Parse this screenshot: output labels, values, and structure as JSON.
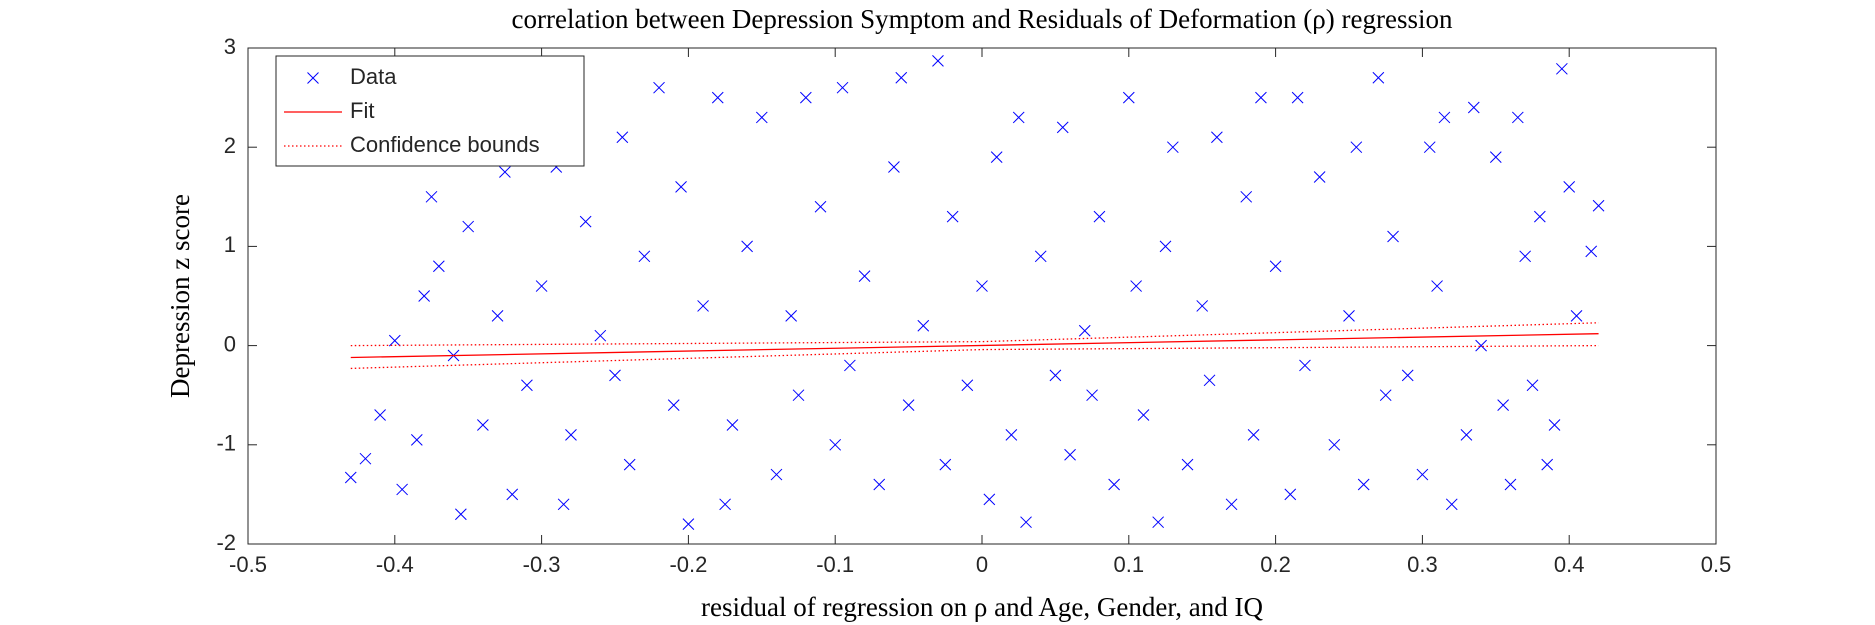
{
  "chart_data": {
    "type": "scatter",
    "title": "correlation between Depression Symptom and Residuals of Deformation (ρ) regression",
    "x_label": "residual of regression on ρ and Age, Gender, and IQ",
    "y_label": "Depression z score",
    "xlim": [
      -0.5,
      0.5
    ],
    "xticks": [
      -0.5,
      -0.4,
      -0.3,
      -0.2,
      -0.1,
      0,
      0.1,
      0.2,
      0.3,
      0.4,
      0.5
    ],
    "ylim": [
      -2,
      3
    ],
    "yticks": [
      -2,
      -1,
      0,
      1,
      2,
      3
    ],
    "grid": false,
    "legend_position": "upper-left",
    "series": [
      {
        "name": "Data",
        "color": "#0000ff",
        "marker": "x",
        "x": [
          -0.43,
          -0.42,
          -0.41,
          -0.4,
          -0.395,
          -0.385,
          -0.38,
          -0.375,
          -0.37,
          -0.36,
          -0.355,
          -0.35,
          -0.34,
          -0.33,
          -0.325,
          -0.32,
          -0.31,
          -0.3,
          -0.29,
          -0.285,
          -0.28,
          -0.27,
          -0.26,
          -0.25,
          -0.245,
          -0.24,
          -0.23,
          -0.22,
          -0.21,
          -0.205,
          -0.2,
          -0.19,
          -0.18,
          -0.175,
          -0.17,
          -0.16,
          -0.15,
          -0.14,
          -0.13,
          -0.125,
          -0.12,
          -0.11,
          -0.1,
          -0.095,
          -0.09,
          -0.08,
          -0.07,
          -0.06,
          -0.055,
          -0.05,
          -0.04,
          -0.03,
          -0.025,
          -0.02,
          -0.01,
          0.0,
          0.005,
          0.01,
          0.02,
          0.025,
          0.03,
          0.04,
          0.05,
          0.055,
          0.06,
          0.07,
          0.075,
          0.08,
          0.09,
          0.1,
          0.105,
          0.11,
          0.12,
          0.125,
          0.13,
          0.14,
          0.15,
          0.155,
          0.16,
          0.17,
          0.18,
          0.185,
          0.19,
          0.2,
          0.21,
          0.215,
          0.22,
          0.23,
          0.24,
          0.25,
          0.255,
          0.26,
          0.27,
          0.275,
          0.28,
          0.29,
          0.3,
          0.305,
          0.31,
          0.315,
          0.32,
          0.33,
          0.335,
          0.34,
          0.35,
          0.355,
          0.36,
          0.365,
          0.37,
          0.375,
          0.38,
          0.385,
          0.39,
          0.395,
          0.4,
          0.405,
          0.415,
          0.42
        ],
        "values": [
          -1.33,
          -1.14,
          -0.7,
          0.05,
          -1.45,
          -0.95,
          0.5,
          1.5,
          0.8,
          -0.1,
          -1.7,
          1.2,
          -0.8,
          0.3,
          1.75,
          -1.5,
          -0.4,
          0.6,
          1.8,
          -1.6,
          -0.9,
          1.25,
          0.1,
          -0.3,
          2.1,
          -1.2,
          0.9,
          2.6,
          -0.6,
          1.6,
          -1.8,
          0.4,
          2.5,
          -1.6,
          -0.8,
          1.0,
          2.3,
          -1.3,
          0.3,
          -0.5,
          2.5,
          1.4,
          -1.0,
          2.6,
          -0.2,
          0.7,
          -1.4,
          1.8,
          2.7,
          -0.6,
          0.2,
          2.87,
          -1.2,
          1.3,
          -0.4,
          0.6,
          -1.55,
          1.9,
          -0.9,
          2.3,
          -1.78,
          0.9,
          -0.3,
          2.2,
          -1.1,
          0.15,
          -0.5,
          1.3,
          -1.4,
          2.5,
          0.6,
          -0.7,
          -1.78,
          1.0,
          2.0,
          -1.2,
          0.4,
          -0.35,
          2.1,
          -1.6,
          1.5,
          -0.9,
          2.5,
          0.8,
          -1.5,
          2.5,
          -0.2,
          1.7,
          -1.0,
          0.3,
          2.0,
          -1.4,
          2.7,
          -0.5,
          1.1,
          -0.3,
          -1.3,
          2.0,
          0.6,
          2.3,
          -1.6,
          -0.9,
          2.4,
          0.0,
          1.9,
          -0.6,
          -1.4,
          2.3,
          0.9,
          -0.4,
          1.3,
          -1.2,
          -0.8,
          2.79,
          1.6,
          0.3,
          0.95,
          1.41
        ]
      },
      {
        "name": "Fit",
        "color": "#ff0000",
        "line": "solid",
        "x": [
          -0.43,
          0.42
        ],
        "values": [
          -0.12,
          0.12
        ]
      },
      {
        "name": "Confidence bounds",
        "color": "#ff0000",
        "line": "dotted",
        "x": [
          -0.43,
          0,
          0.42
        ],
        "upper": [
          0.0,
          0.04,
          0.23
        ],
        "lower": [
          -0.23,
          -0.04,
          0.0
        ]
      }
    ]
  }
}
